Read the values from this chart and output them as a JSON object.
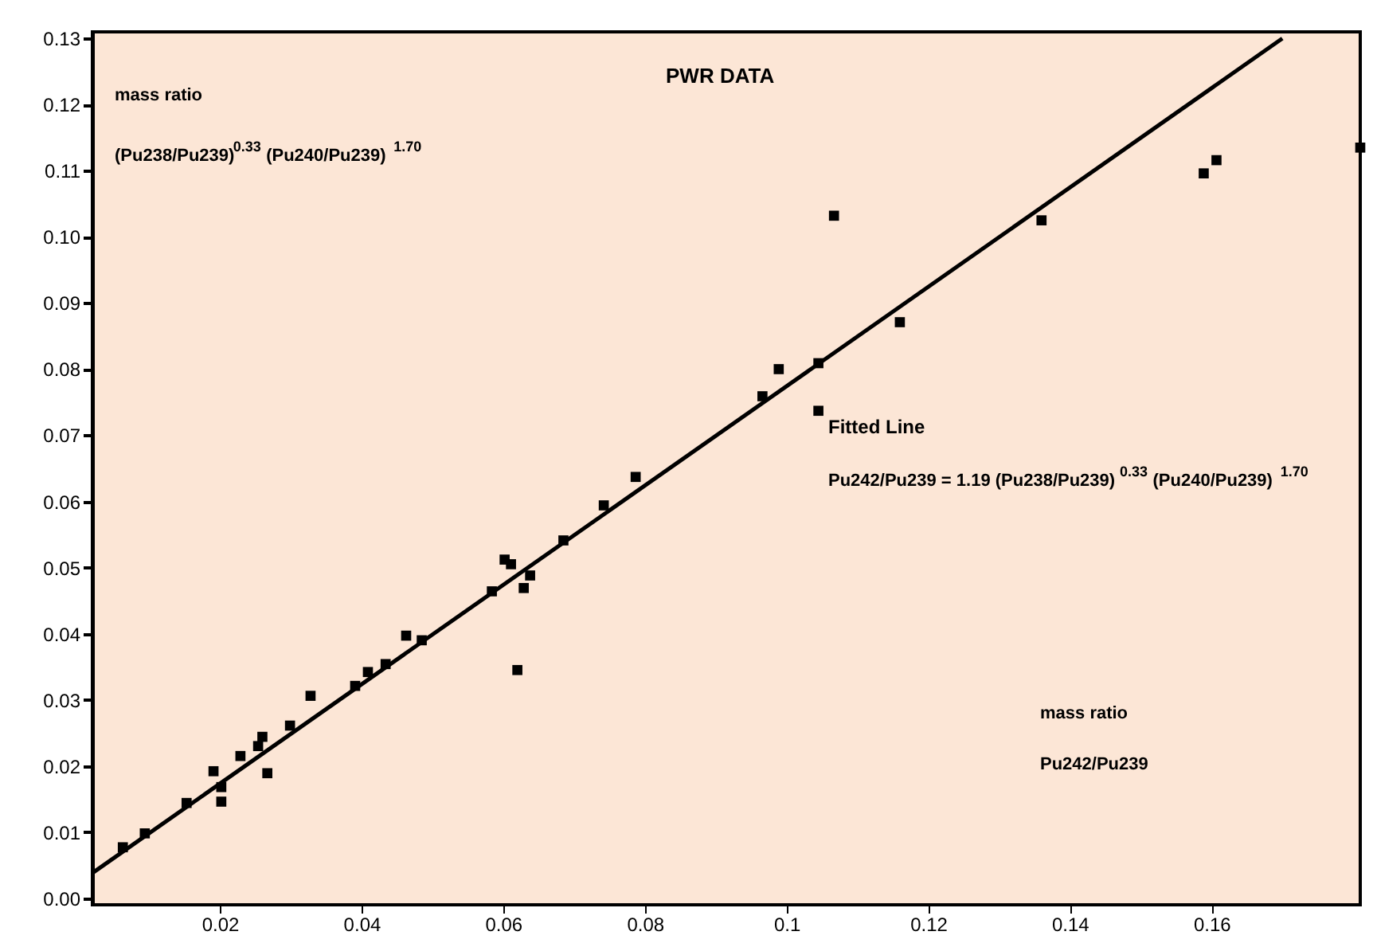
{
  "chart_data": {
    "type": "scatter",
    "marker": "square",
    "x": [
      0.0063,
      0.0094,
      0.0153,
      0.0191,
      0.0202,
      0.0202,
      0.0229,
      0.0254,
      0.026,
      0.0267,
      0.0299,
      0.0328,
      0.0391,
      0.0409,
      0.0434,
      0.0463,
      0.0485,
      0.0584,
      0.0602,
      0.0611,
      0.062,
      0.0629,
      0.0638,
      0.0685,
      0.0742,
      0.0787,
      0.0966,
      0.0989,
      0.1045,
      0.1045,
      0.1067,
      0.116,
      0.136,
      0.1589,
      0.1607,
      0.181
    ],
    "series": [
      {
        "color": "#000000",
        "values": [
          0.0077,
          0.0098,
          0.0144,
          0.0192,
          0.0146,
          0.0168,
          0.0215,
          0.023,
          0.0244,
          0.0189,
          0.0261,
          0.0306,
          0.0321,
          0.0342,
          0.0354,
          0.0397,
          0.039,
          0.0464,
          0.0512,
          0.0505,
          0.0345,
          0.0469,
          0.0488,
          0.0541,
          0.0594,
          0.0637,
          0.0759,
          0.08,
          0.0809,
          0.0737,
          0.1032,
          0.0871,
          0.1025,
          0.1096,
          0.1116,
          0.1135
        ]
      },
      {
        "type": "line",
        "marker": "none",
        "color": "#000000",
        "x": [
          0.002,
          0.17
        ],
        "values": [
          0.0038,
          0.13
        ]
      }
    ],
    "xlim": [
      0.002,
      0.181
    ],
    "xticks": [
      0.02,
      0.04,
      0.06,
      0.08,
      0.1,
      0.12,
      0.14,
      0.16
    ],
    "ylim": [
      -0.001,
      0.131
    ],
    "yticks": [
      {
        "value": 0,
        "label": "0.00"
      },
      {
        "value": 0.01,
        "label": "0.01"
      },
      {
        "value": 0.02,
        "label": "0.02"
      },
      {
        "value": 0.03,
        "label": "0.03"
      },
      {
        "value": 0.04,
        "label": "0.04"
      },
      {
        "value": 0.05,
        "label": "0.05"
      },
      {
        "value": 0.06,
        "label": "0.06"
      },
      {
        "value": 0.07,
        "label": "0.07"
      },
      {
        "value": 0.08,
        "label": "0.08"
      },
      {
        "value": 0.09,
        "label": "0.09"
      },
      {
        "value": 0.1,
        "label": "0.10"
      },
      {
        "value": 0.11,
        "label": "0.11"
      },
      {
        "value": 0.12,
        "label": "0.12"
      },
      {
        "value": 0.13,
        "label": "0.13"
      }
    ],
    "grid": false,
    "annotations": [
      "PWR DATA",
      "mass ratio",
      "(Pu238/Pu239)$^{0.33}$ (Pu240/Pu239)$^{1.70}$",
      "Fitted Line",
      "Pu242/Pu239 = 1.19 (Pu238/Pu239)$^{0.33}$ (Pu240/Pu239)$^{1.70}$",
      "mass ratio",
      "Pu242/Pu239"
    ]
  }
}
